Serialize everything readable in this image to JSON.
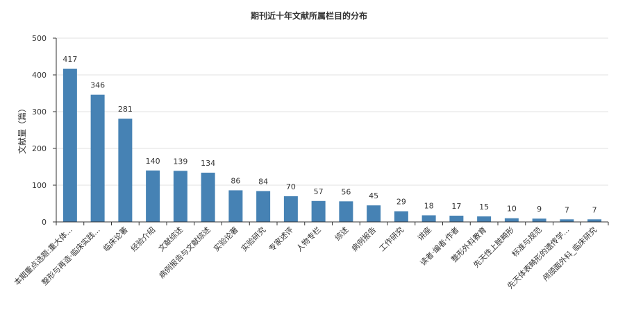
{
  "chart_data": {
    "type": "bar",
    "title": "期刊近十年文献所属栏目的分布",
    "ylabel": "文献量（篇）",
    "xlabel": "",
    "ylim": [
      0,
      500
    ],
    "yticks": [
      0,
      100,
      200,
      300,
      400,
      500
    ],
    "grid": true,
    "bar_color": "#4682b4",
    "categories": [
      "本期重点选题:重大体...",
      "整形与再造·临床实践...",
      "临床论著",
      "经验介绍",
      "文献综述",
      "病例报告与文献综述",
      "实验论著",
      "实验研究",
      "专家述评",
      "人物专栏",
      "综述",
      "病例报告",
      "工作研究",
      "讲座",
      "读者·编者·作者",
      "整形外科教育",
      "先天性上肢畸形",
      "标准与规范",
      "先天体表畸形的遗传学...",
      "颅颌面外科_临床研究"
    ],
    "values": [
      417,
      346,
      281,
      140,
      139,
      134,
      86,
      84,
      70,
      57,
      56,
      45,
      29,
      18,
      17,
      15,
      10,
      9,
      7,
      7
    ]
  }
}
